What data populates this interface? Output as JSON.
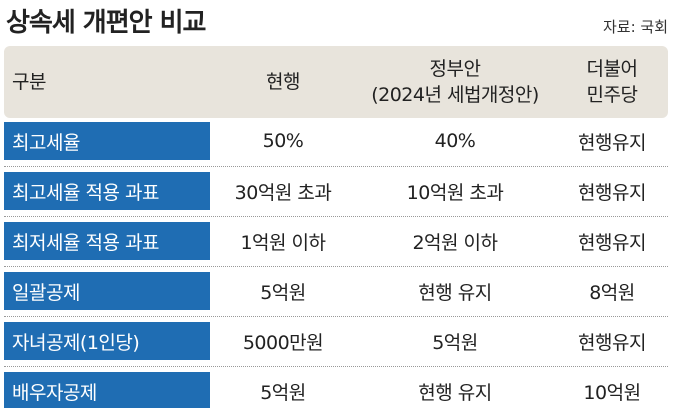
{
  "title": "상속세 개편안 비교",
  "source": "자료: 국회",
  "header": {
    "columns": [
      [
        "구분"
      ],
      [
        "현행"
      ],
      [
        "정부안",
        "(2024년 세법개정안)"
      ],
      [
        "더불어",
        "민주당"
      ]
    ]
  },
  "table": {
    "rows": [
      [
        "최고세율",
        "50%",
        "40%",
        "현행유지"
      ],
      [
        "최고세율 적용 과표",
        "30억원 초과",
        "10억원 초과",
        "현행유지"
      ],
      [
        "최저세율 적용 과표",
        "1억원 이하",
        "2억원 이하",
        "현행유지"
      ],
      [
        "일괄공제",
        "5억원",
        "현행 유지",
        "8억원"
      ],
      [
        "자녀공제(1인당)",
        "5000만원",
        "5억원",
        "현행유지"
      ],
      [
        "배우자공제",
        "5억원",
        "현행 유지",
        "10억원"
      ]
    ]
  }
}
